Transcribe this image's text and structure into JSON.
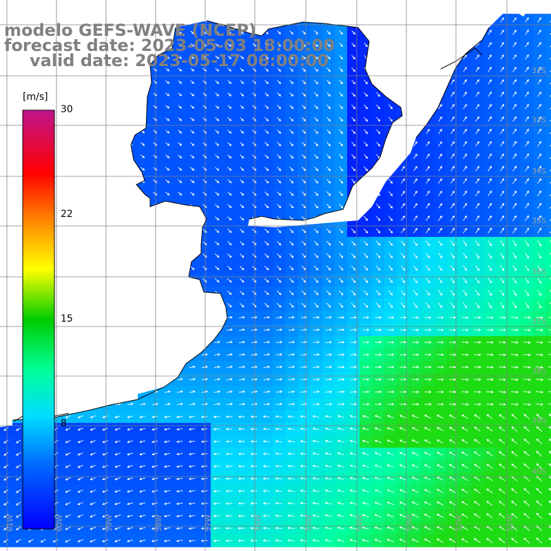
{
  "title": {
    "model": "modelo GEFS-WAVE (NCEP)",
    "forecast": "forecast date: 2023-05-03 18:00:00",
    "valid": "valid date: 2023-05-17 06:00:00"
  },
  "colorbar": {
    "unit": "[m/s]",
    "min": 0,
    "max": 30,
    "ticks": [
      "30",
      "22",
      "15",
      "8"
    ],
    "colors": [
      "#0000ff",
      "#00aaff",
      "#00ffee",
      "#00dd00",
      "#ffff00",
      "#ff8800",
      "#ff0000",
      "#c0148c"
    ]
  },
  "map": {
    "lat_labels": [
      "32S",
      "33S",
      "34S",
      "35S",
      "36S",
      "37S",
      "38S",
      "39S",
      "40S"
    ],
    "lon_labels": [
      "61W",
      "60W",
      "59W",
      "58W",
      "57W",
      "56W",
      "55W",
      "54W",
      "53W",
      "52W",
      "51W"
    ],
    "land_color": "#ffffff",
    "grid_color": "#808080"
  }
}
